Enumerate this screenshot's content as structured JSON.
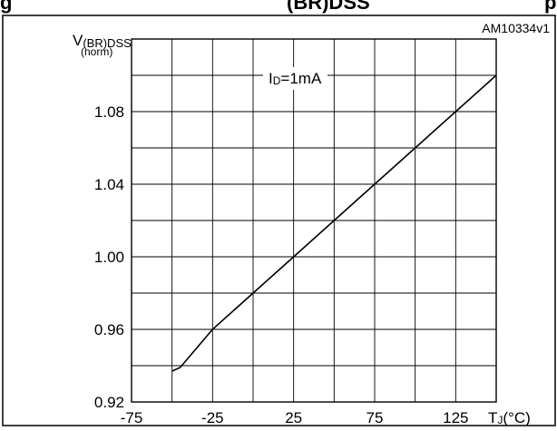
{
  "header": {
    "fragment_left": "g",
    "fragment_mid": "(BR)DSS",
    "fragment_right": "p"
  },
  "figure_id": "AM10334v1",
  "chart_data": {
    "type": "line",
    "ylabel_main": "V",
    "ylabel_sub": "(BR)DSS",
    "ylabel_norm": "(norm)",
    "xlabel_main": "T",
    "xlabel_sub": "J",
    "xlabel_unit": "(°C)",
    "annotation": {
      "text_main": "I",
      "text_sub": "D",
      "text_rest": "=1mA"
    },
    "xlim": [
      -75,
      150
    ],
    "ylim": [
      0.92,
      1.12
    ],
    "x_ticks": [
      -75,
      -25,
      25,
      75,
      125
    ],
    "y_ticks": [
      0.92,
      0.96,
      1.0,
      1.04,
      1.08
    ],
    "x_tick_labels": [
      "-75",
      "-25",
      "25",
      "75",
      "125"
    ],
    "y_tick_labels": [
      "0.92",
      "0.96",
      "1.00",
      "1.04",
      "1.08"
    ],
    "x_grid_step": 25,
    "y_grid_step": 0.02,
    "grid": true,
    "series": [
      {
        "x": [
          -50,
          -45,
          -25,
          0,
          25,
          50,
          75,
          100,
          125,
          150
        ],
        "y": [
          0.937,
          0.939,
          0.96,
          0.98,
          1.0,
          1.02,
          1.04,
          1.06,
          1.08,
          1.1
        ],
        "color": "#000000"
      }
    ]
  }
}
